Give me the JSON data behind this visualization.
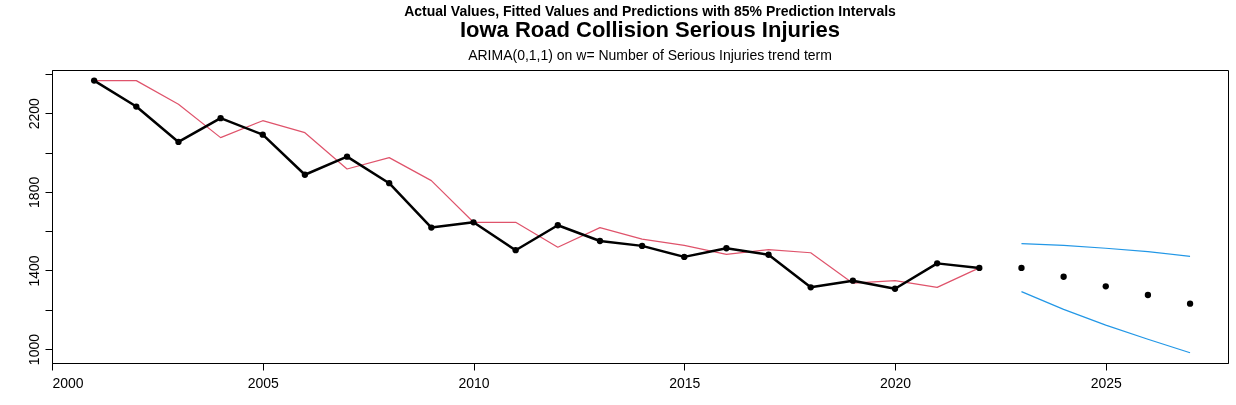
{
  "chart_data": {
    "type": "line",
    "title": "Iowa Road Collision Serious Injuries",
    "subtitle": "ARIMA(0,1,1) on w= Number of Serious Injuries  trend term",
    "annotations": [
      "Actual Values, Fitted Values and Predictions with 85% Prediction Intervals"
    ],
    "xlim": [
      2000,
      2027.9
    ],
    "xticks": [
      2000,
      2005,
      2010,
      2015,
      2020,
      2025
    ],
    "ylim": [
      929,
      2420
    ],
    "yticks": [
      1000,
      {
        "value": 1200,
        "label": null
      },
      1400,
      {
        "value": 1600,
        "label": null
      },
      1800,
      {
        "value": 2000,
        "label": null
      },
      2200,
      {
        "value": 2400,
        "label": null
      }
    ],
    "grid": false,
    "legend": false,
    "series": [
      {
        "color": "#df536b",
        "marker": "none",
        "x": [
          2001,
          2002,
          2003,
          2004,
          2005,
          2006,
          2007,
          2008,
          2009,
          2010,
          2011,
          2012,
          2013,
          2014,
          2015,
          2016,
          2017,
          2018,
          2019,
          2020,
          2021,
          2022
        ],
        "values": [
          2366,
          2366,
          2246,
          2076,
          2162,
          2101,
          1916,
          1974,
          1857,
          1645,
          1645,
          1518,
          1618,
          1559,
          1528,
          1482,
          1506,
          1490,
          1335,
          1348,
          1314,
          1413
        ]
      },
      {
        "color": "#000000",
        "marker": "circle",
        "x": [
          2001,
          2002,
          2003,
          2004,
          2005,
          2006,
          2007,
          2008,
          2009,
          2010,
          2011,
          2012,
          2013,
          2014,
          2015,
          2016,
          2017,
          2018,
          2019,
          2020,
          2021,
          2022
        ],
        "values": [
          2366,
          2234,
          2054,
          2175,
          2091,
          1887,
          1979,
          1844,
          1618,
          1645,
          1503,
          1630,
          1550,
          1525,
          1469,
          1513,
          1480,
          1314,
          1348,
          1307,
          1436,
          1413
        ]
      },
      {
        "type": "scatter",
        "color": "#000000",
        "marker": "circle",
        "x": [
          2023,
          2024,
          2025,
          2026,
          2027
        ],
        "values": [
          1413,
          1368,
          1319,
          1275,
          1231
        ]
      },
      {
        "color": "#2297e6",
        "marker": "none",
        "x": [
          2023,
          2024,
          2025,
          2026,
          2027
        ],
        "values": [
          1536,
          1528,
          1513,
          1496,
          1472
        ]
      },
      {
        "color": "#2297e6",
        "marker": "none",
        "x": [
          2023,
          2024,
          2025,
          2026,
          2027
        ],
        "values": [
          1292,
          1202,
          1122,
          1050,
          981
        ]
      }
    ]
  }
}
